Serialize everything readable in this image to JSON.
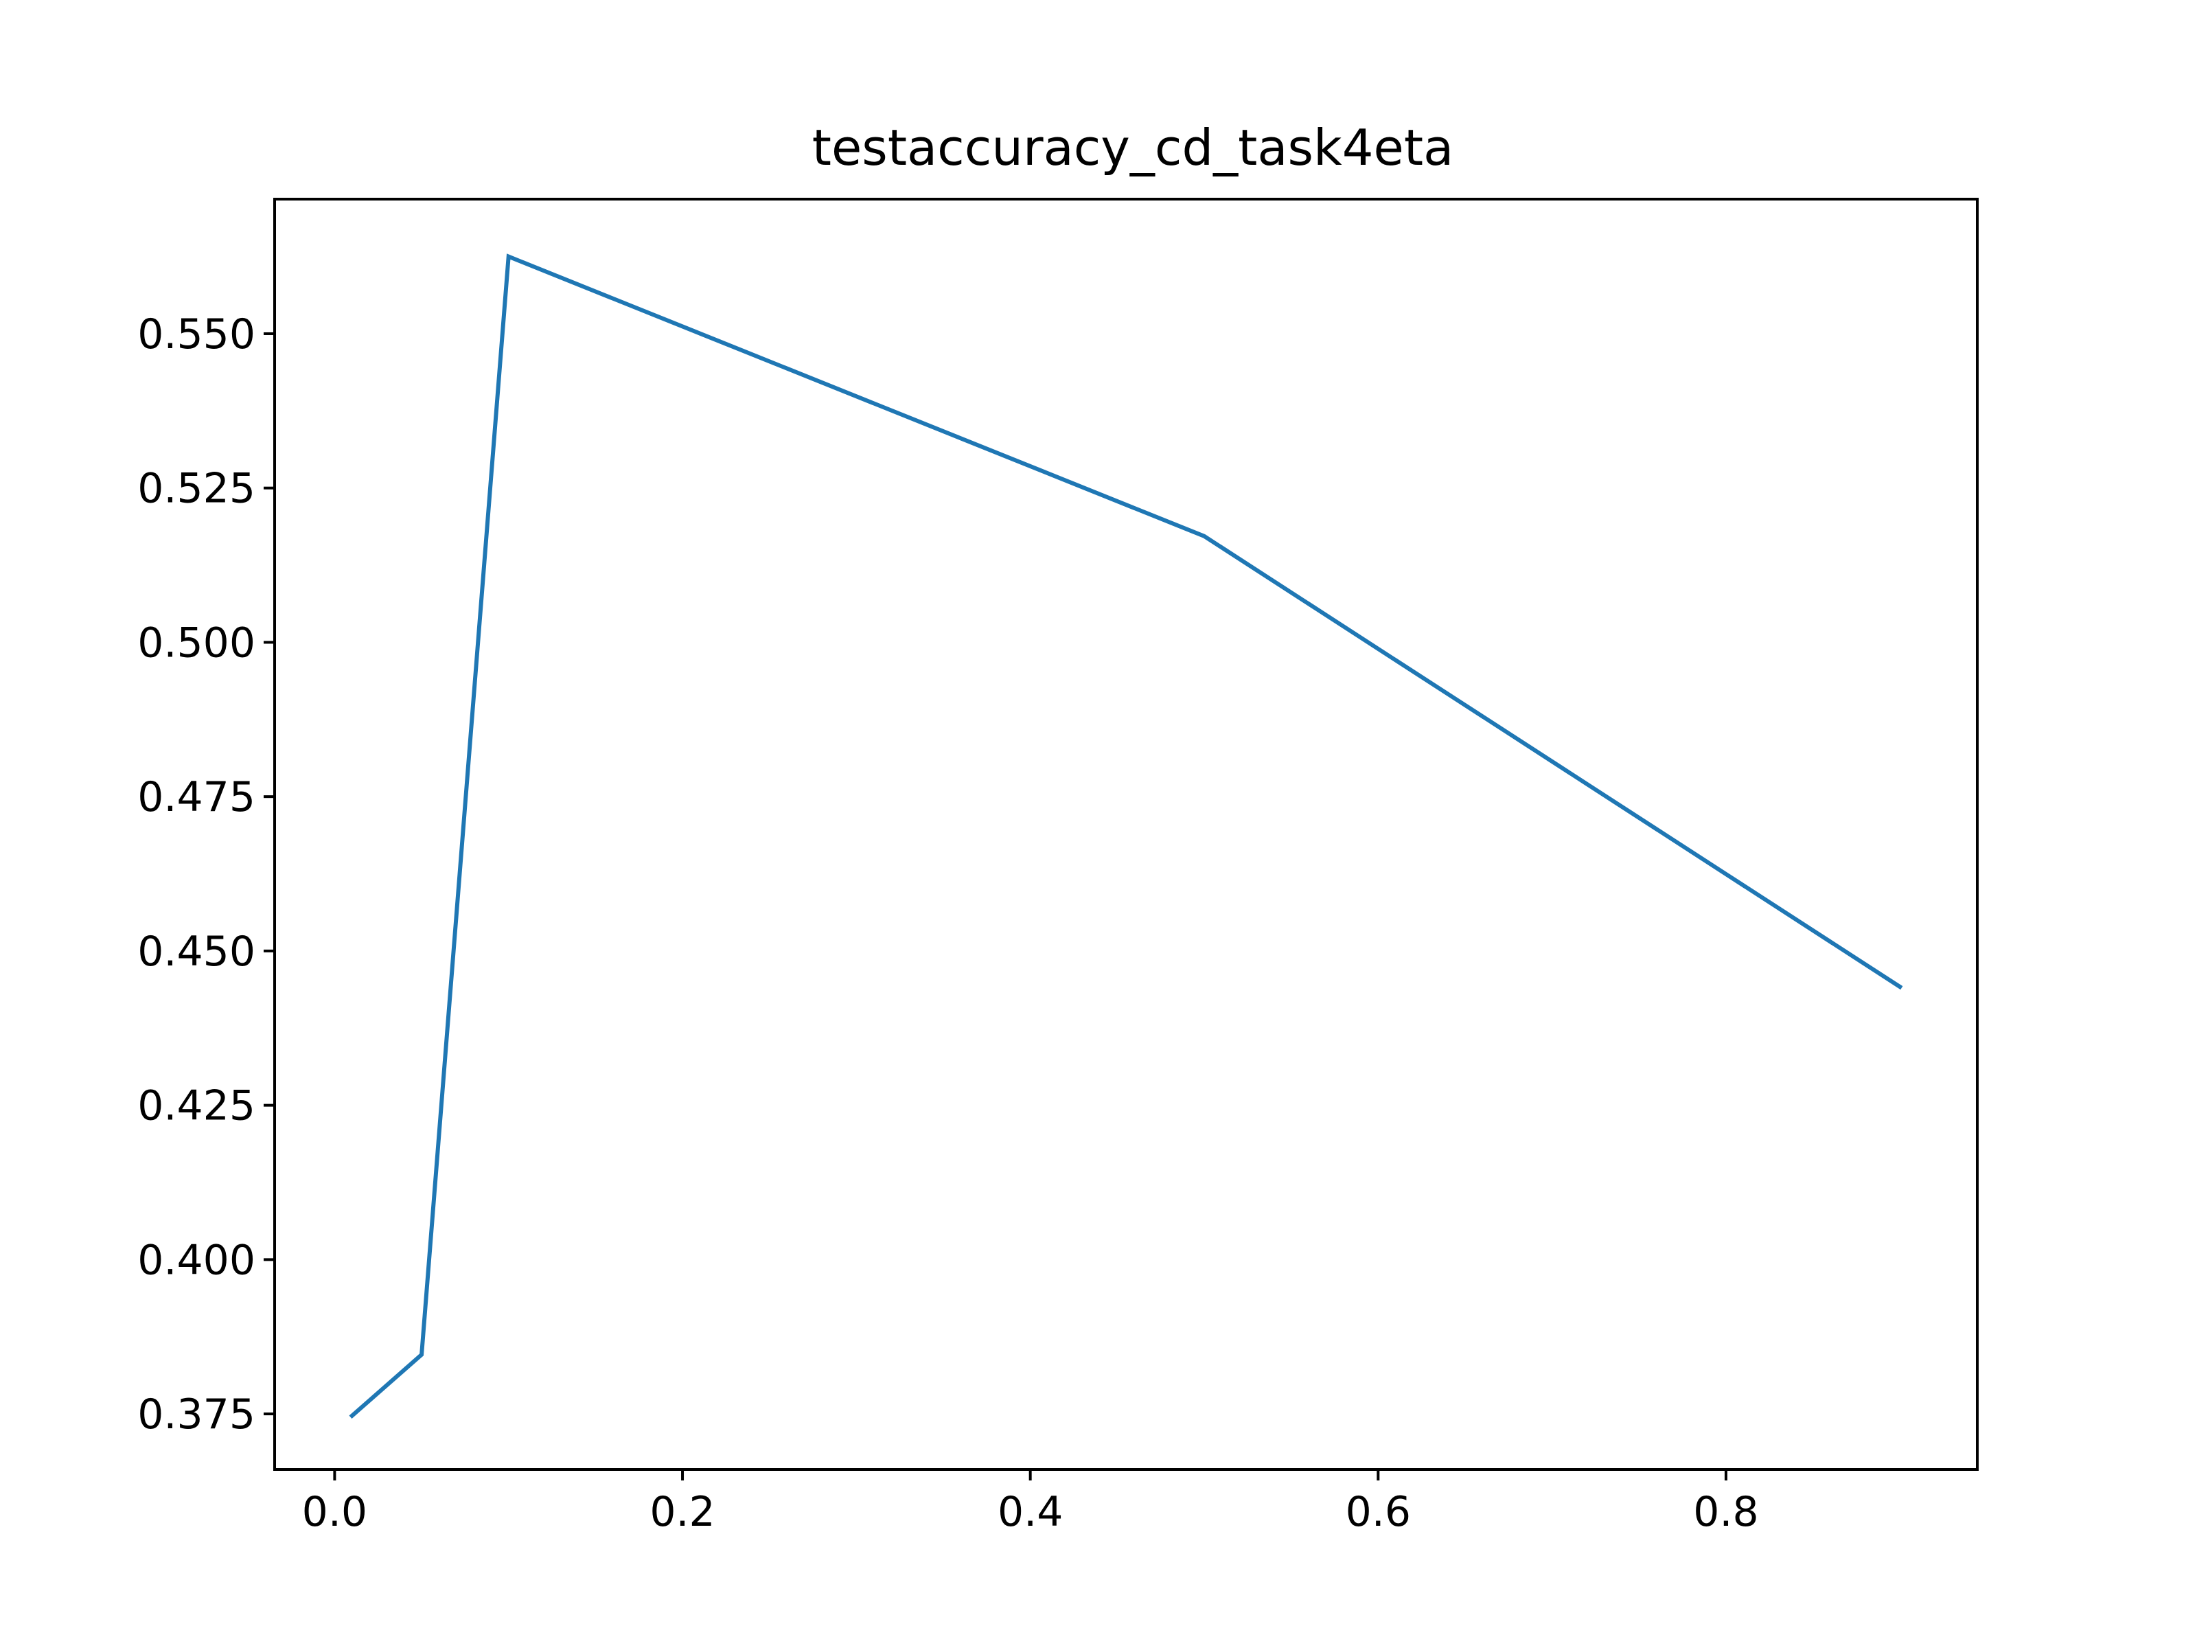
{
  "chart_data": {
    "type": "line",
    "title": "testaccuracy_cd_task4eta",
    "xlabel": "",
    "ylabel": "",
    "x": [
      0.01,
      0.05,
      0.1,
      0.5,
      0.9
    ],
    "series": [
      {
        "values": [
          0.3747,
          0.3846,
          0.5625,
          0.5172,
          0.4442
        ],
        "color": "#1f77b4"
      }
    ],
    "xlim": [
      -0.0345,
      0.9445
    ],
    "ylim": [
      0.366,
      0.5718
    ],
    "xticks": [
      0.0,
      0.2,
      0.4,
      0.6,
      0.8
    ],
    "xtick_labels": [
      "0.0",
      "0.2",
      "0.4",
      "0.6",
      "0.8"
    ],
    "yticks": [
      0.375,
      0.4,
      0.425,
      0.45,
      0.475,
      0.5,
      0.525,
      0.55
    ],
    "ytick_labels": [
      "0.375",
      "0.400",
      "0.425",
      "0.450",
      "0.475",
      "0.500",
      "0.525",
      "0.550"
    ],
    "grid": false,
    "legend": "none"
  }
}
